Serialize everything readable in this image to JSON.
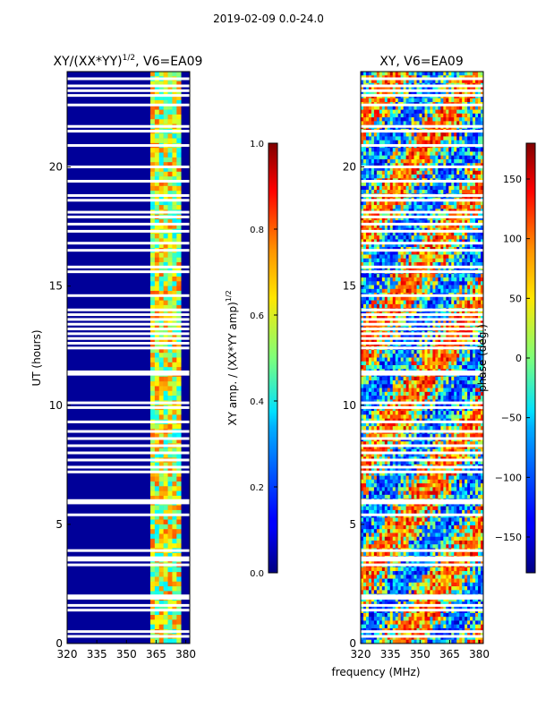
{
  "figure_title": "2019-02-09 0.0-24.0",
  "chart_data": [
    {
      "type": "heatmap",
      "title": "XY/(XX*YY)^1/2, V6=EA09",
      "title_main": "XY/(XX*YY)",
      "title_sup": "1/2",
      "title_tail": ", V6=EA09",
      "xlabel": "",
      "ylabel": "UT (hours)",
      "xlim": [
        320,
        382
      ],
      "ylim": [
        0,
        24
      ],
      "xticks": [
        320,
        335,
        350,
        365,
        380
      ],
      "yticks": [
        0,
        5,
        10,
        15,
        20
      ],
      "colorbar": {
        "label": "XY amp. / (XX*YY amp)^1/2",
        "label_main": "XY amp. / (XX*YY amp)",
        "label_sup": "1/2",
        "range": [
          0.0,
          1.0
        ],
        "ticks": [
          "0.0",
          "0.2",
          "0.4",
          "0.6",
          "0.8",
          "1.0"
        ]
      },
      "colormap": "jet",
      "gap_hours": [
        0.3,
        0.5,
        1.4,
        1.6,
        1.9,
        2.0,
        3.3,
        3.5,
        3.6,
        3.9,
        5.4,
        5.9,
        6.0,
        7.2,
        7.4,
        7.7,
        8.0,
        8.3,
        8.6,
        8.9,
        9.3,
        9.9,
        10.1,
        11.3,
        11.4,
        12.4,
        12.6,
        12.8,
        13.0,
        13.2,
        13.4,
        13.6,
        13.8,
        14.0,
        14.6,
        15.6,
        15.8,
        16.5,
        16.8,
        17.3,
        17.6,
        17.9,
        18.1,
        18.6,
        18.8,
        19.4,
        20.0,
        20.9,
        21.5,
        21.7,
        22.6,
        23.0,
        23.2,
        23.4,
        23.7
      ]
    },
    {
      "type": "heatmap",
      "title": "XY, V6=EA09",
      "xlabel": "frequency (MHz)",
      "ylabel": "",
      "xlim": [
        320,
        382
      ],
      "ylim": [
        0,
        24
      ],
      "xticks": [
        320,
        335,
        350,
        365,
        380
      ],
      "yticks": [
        0,
        5,
        10,
        15,
        20
      ],
      "colorbar": {
        "label": "phase (deg.)",
        "range": [
          -180,
          180
        ],
        "ticks": [
          "−150",
          "−100",
          "−50",
          "0",
          "50",
          "100",
          "150"
        ],
        "tick_values": [
          -150,
          -100,
          -50,
          0,
          50,
          100,
          150
        ]
      },
      "colormap": "jet",
      "gap_hours": [
        0.3,
        0.5,
        1.4,
        1.6,
        1.9,
        2.0,
        3.3,
        3.5,
        3.6,
        3.9,
        5.4,
        5.9,
        6.0,
        7.2,
        7.4,
        7.7,
        8.0,
        8.3,
        8.6,
        8.9,
        9.3,
        9.9,
        10.1,
        11.3,
        11.4,
        12.4,
        12.6,
        12.8,
        13.0,
        13.2,
        13.4,
        13.6,
        13.8,
        14.0,
        14.6,
        15.6,
        15.8,
        16.5,
        16.8,
        17.3,
        17.6,
        17.9,
        18.1,
        18.6,
        18.8,
        19.4,
        20.0,
        20.9,
        21.5,
        21.7,
        22.6,
        23.0,
        23.2,
        23.4,
        23.7
      ]
    }
  ]
}
